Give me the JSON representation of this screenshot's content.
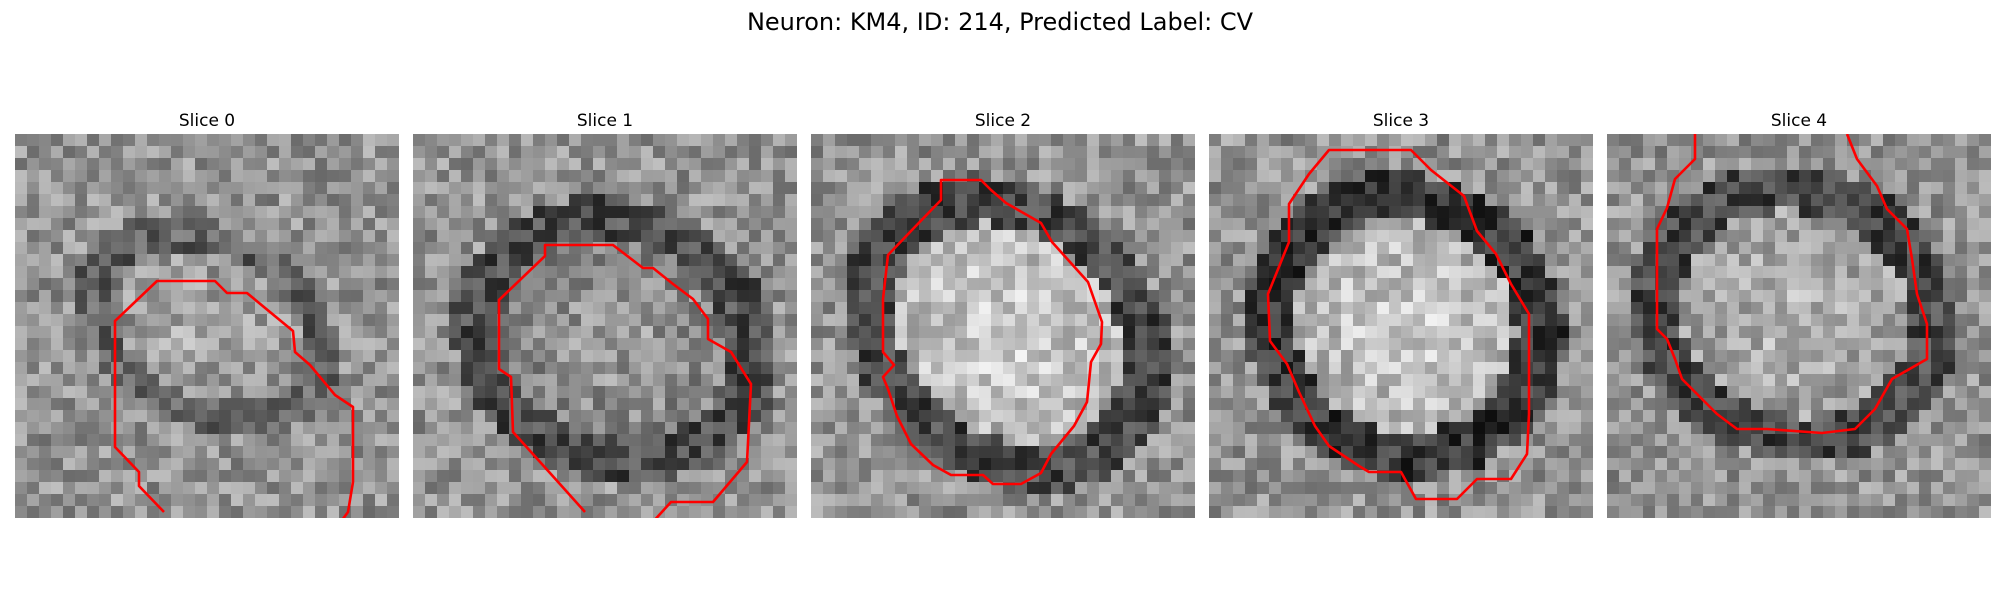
{
  "figure": {
    "title": "Neuron: KM4, ID: 214, Predicted Label: CV",
    "contour_color": "#ff0000"
  },
  "panels": [
    {
      "title": "Slice 0",
      "rim_brightness": 0.38,
      "core_brightness": 0.68,
      "seed": 11
    },
    {
      "title": "Slice 1",
      "rim_brightness": 0.3,
      "core_brightness": 0.62,
      "seed": 23
    },
    {
      "title": "Slice 2",
      "rim_brightness": 0.28,
      "core_brightness": 0.82,
      "seed": 37
    },
    {
      "title": "Slice 3",
      "rim_brightness": 0.22,
      "core_brightness": 0.8,
      "seed": 41
    },
    {
      "title": "Slice 4",
      "rim_brightness": 0.28,
      "core_brightness": 0.72,
      "seed": 53
    }
  ]
}
